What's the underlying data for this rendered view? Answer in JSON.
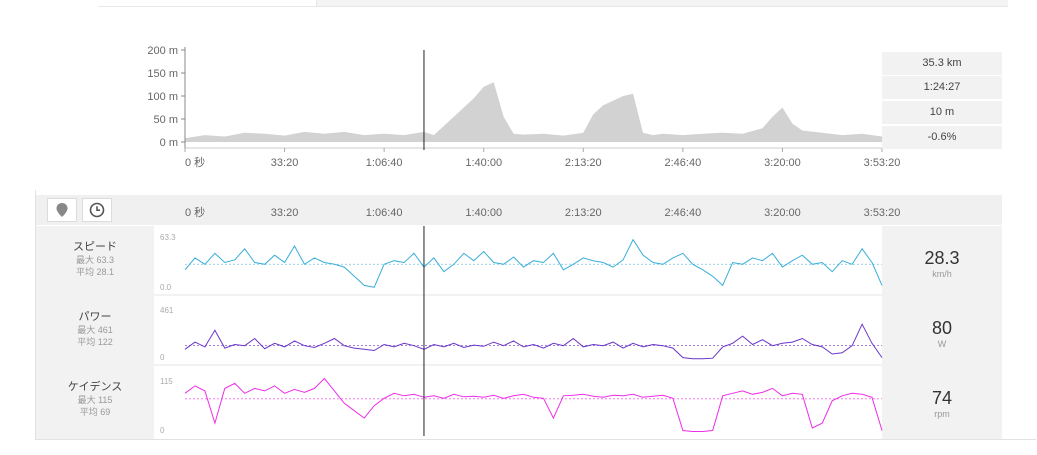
{
  "summary": {
    "distance": "35.3 km",
    "duration": "1:24:27",
    "elevation_gain": "10 m",
    "grade": "-0.6%"
  },
  "elevation_chart": {
    "y_ticks": [
      "200 m",
      "150 m",
      "100 m",
      "50 m",
      "0 m"
    ],
    "x_ticks": [
      "0 秒",
      "33:20",
      "1:06:40",
      "1:40:00",
      "2:13:20",
      "2:46:40",
      "3:20:00",
      "3:53:20"
    ]
  },
  "timeline": {
    "x_ticks": [
      "0 秒",
      "33:20",
      "1:06:40",
      "1:40:00",
      "2:13:20",
      "2:46:40",
      "3:20:00",
      "3:53:20"
    ],
    "map_icon": "map-marker-icon",
    "clock_icon": "clock-icon"
  },
  "metrics": {
    "speed": {
      "name": "スピード",
      "max_label": "最大 63.3",
      "avg_label": "平均 28.1",
      "axis_max": "63.3",
      "axis_min": "0.0",
      "value": "28.3",
      "unit": "km/h",
      "color": "#3aaed8"
    },
    "power": {
      "name": "パワー",
      "max_label": "最大 461",
      "avg_label": "平均 122",
      "axis_max": "461",
      "axis_min": "0",
      "value": "80",
      "unit": "W",
      "color": "#6a35c9"
    },
    "cadence": {
      "name": "ケイデンス",
      "max_label": "最大 115",
      "avg_label": "平均 69",
      "axis_max": "115",
      "axis_min": "0",
      "value": "74",
      "unit": "rpm",
      "color": "#ee2ee8"
    }
  },
  "chart_data": [
    {
      "type": "area",
      "ylabel": "",
      "xlabel": "",
      "ylim": [
        0,
        200
      ],
      "xlim_seconds": [
        0,
        14000
      ],
      "x_ticks_seconds": [
        0,
        2000,
        4000,
        6000,
        8000,
        10000,
        12000,
        14000
      ],
      "x": [
        0,
        400,
        800,
        1200,
        1600,
        2000,
        2400,
        2800,
        3200,
        3600,
        4000,
        4400,
        4800,
        5000,
        5200,
        5500,
        5800,
        6000,
        6200,
        6400,
        6600,
        6800,
        7200,
        7600,
        8000,
        8200,
        8400,
        8600,
        8800,
        9000,
        9200,
        9400,
        9600,
        10000,
        10400,
        10800,
        11200,
        11600,
        11800,
        12000,
        12200,
        12400,
        12800,
        13200,
        13600,
        14000
      ],
      "values": [
        8,
        15,
        12,
        20,
        18,
        14,
        22,
        18,
        22,
        15,
        18,
        15,
        22,
        15,
        35,
        65,
        95,
        120,
        130,
        55,
        18,
        16,
        18,
        14,
        20,
        60,
        80,
        90,
        100,
        105,
        20,
        15,
        18,
        15,
        18,
        20,
        18,
        30,
        55,
        75,
        40,
        25,
        20,
        15,
        18,
        12
      ],
      "cursor_seconds": 4800
    },
    {
      "type": "line",
      "name": "スピード",
      "ylim": [
        0,
        63.3
      ],
      "avg": 28.1,
      "x": [
        0,
        200,
        400,
        600,
        800,
        1000,
        1200,
        1400,
        1600,
        1800,
        2000,
        2200,
        2400,
        2600,
        2800,
        3000,
        3200,
        3400,
        3600,
        3800,
        4000,
        4200,
        4400,
        4600,
        4800,
        5000,
        5200,
        5400,
        5600,
        5800,
        6000,
        6200,
        6400,
        6600,
        6800,
        7000,
        7200,
        7400,
        7600,
        7800,
        8000,
        8200,
        8400,
        8600,
        8800,
        9000,
        9200,
        9400,
        9600,
        9800,
        10000,
        10200,
        10400,
        10600,
        10800,
        11000,
        11200,
        11400,
        11600,
        11800,
        12000,
        12200,
        12400,
        12600,
        12800,
        13000,
        13200,
        13400,
        13600,
        13800,
        14000
      ],
      "values": [
        22,
        35,
        28,
        40,
        30,
        33,
        45,
        30,
        28,
        38,
        30,
        48,
        28,
        35,
        30,
        28,
        25,
        15,
        5,
        3,
        28,
        32,
        30,
        40,
        25,
        35,
        20,
        28,
        40,
        32,
        42,
        30,
        28,
        36,
        25,
        32,
        30,
        40,
        22,
        28,
        35,
        32,
        30,
        25,
        33,
        55,
        38,
        30,
        28,
        35,
        40,
        28,
        22,
        15,
        5,
        30,
        28,
        35,
        32,
        40,
        25,
        32,
        38,
        28,
        30,
        20,
        32,
        28,
        45,
        30,
        5
      ]
    },
    {
      "type": "line",
      "name": "パワー",
      "ylim": [
        0,
        461
      ],
      "avg": 122,
      "x": [
        0,
        200,
        400,
        600,
        800,
        1000,
        1200,
        1400,
        1600,
        1800,
        2000,
        2200,
        2400,
        2600,
        2800,
        3000,
        3200,
        3400,
        3600,
        3800,
        4000,
        4200,
        4400,
        4600,
        4800,
        5000,
        5200,
        5400,
        5600,
        5800,
        6000,
        6200,
        6400,
        6600,
        6800,
        7000,
        7200,
        7400,
        7600,
        7800,
        8000,
        8200,
        8400,
        8600,
        8800,
        9000,
        9200,
        9400,
        9600,
        9800,
        10000,
        10200,
        10400,
        10600,
        10800,
        11000,
        11200,
        11400,
        11600,
        11800,
        12000,
        12200,
        12400,
        12600,
        12800,
        13000,
        13200,
        13400,
        13600,
        13800,
        14000
      ],
      "values": [
        90,
        150,
        110,
        250,
        100,
        130,
        120,
        180,
        95,
        140,
        110,
        160,
        120,
        105,
        140,
        180,
        120,
        100,
        90,
        80,
        130,
        110,
        140,
        120,
        90,
        130,
        110,
        140,
        105,
        125,
        115,
        150,
        120,
        160,
        110,
        130,
        100,
        140,
        120,
        180,
        110,
        130,
        120,
        150,
        100,
        140,
        110,
        130,
        120,
        100,
        20,
        10,
        10,
        15,
        110,
        140,
        200,
        130,
        170,
        120,
        140,
        150,
        180,
        130,
        110,
        50,
        60,
        120,
        300,
        140,
        20
      ]
    },
    {
      "type": "line",
      "name": "ケイデンス",
      "ylim": [
        0,
        115
      ],
      "avg": 69,
      "x": [
        0,
        200,
        400,
        600,
        800,
        1000,
        1200,
        1400,
        1600,
        1800,
        2000,
        2200,
        2400,
        2600,
        2800,
        3000,
        3200,
        3400,
        3600,
        3800,
        4000,
        4200,
        4400,
        4600,
        4800,
        5000,
        5200,
        5400,
        5600,
        5800,
        6000,
        6200,
        6400,
        6600,
        6800,
        7000,
        7200,
        7400,
        7600,
        7800,
        8000,
        8200,
        8400,
        8600,
        8800,
        9000,
        9200,
        9400,
        9600,
        9800,
        10000,
        10200,
        10400,
        10600,
        10800,
        11000,
        11200,
        11400,
        11600,
        11800,
        12000,
        12200,
        12400,
        12600,
        12800,
        13000,
        13200,
        13400,
        13600,
        13800,
        14000
      ],
      "values": [
        80,
        95,
        85,
        20,
        90,
        100,
        80,
        90,
        85,
        95,
        80,
        88,
        82,
        90,
        110,
        85,
        60,
        45,
        30,
        55,
        70,
        80,
        75,
        78,
        72,
        75,
        70,
        78,
        73,
        74,
        72,
        76,
        70,
        75,
        78,
        72,
        70,
        30,
        75,
        76,
        78,
        74,
        72,
        76,
        75,
        78,
        72,
        74,
        76,
        70,
        5,
        3,
        3,
        5,
        75,
        80,
        85,
        78,
        82,
        90,
        75,
        80,
        78,
        10,
        20,
        65,
        75,
        80,
        78,
        72,
        5
      ]
    }
  ]
}
